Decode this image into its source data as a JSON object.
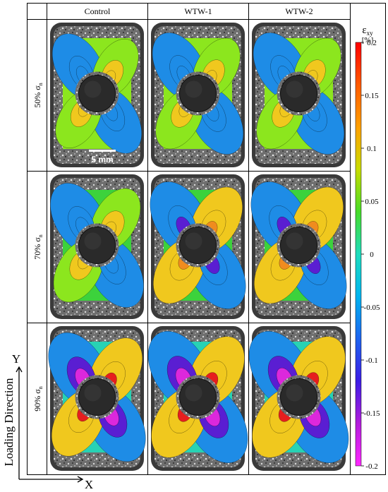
{
  "columns": [
    "Control",
    "WTW-1",
    "WTW-2"
  ],
  "rows": [
    {
      "pct": "50%",
      "sym": "σ",
      "sub": "n"
    },
    {
      "pct": "70%",
      "sym": "σ",
      "sub": "n"
    },
    {
      "pct": "90%",
      "sym": "σ",
      "sub": "n"
    }
  ],
  "colorbar": {
    "symbol": "ε",
    "subscript": "xy",
    "unit": "[%]",
    "ticks": [
      "0.2",
      "0.15",
      "0.1",
      "0.05",
      "0",
      "-0.05",
      "-0.1",
      "-0.15",
      "-0.2"
    ],
    "colors": [
      "#e61e1e",
      "#f08c1e",
      "#f0c81e",
      "#8ce61e",
      "#3cd23c",
      "#28d2b4",
      "#1e8ce6",
      "#3c50e6",
      "#5a1ed2",
      "#dc28dc"
    ]
  },
  "scale_bar": "5 mm",
  "axes": {
    "y": "Y",
    "x": "X",
    "direction": "Loading Direction"
  },
  "fields": [
    {
      "level": 0.35
    },
    {
      "level": 0.45
    },
    {
      "level": 0.45
    },
    {
      "level": 0.6
    },
    {
      "level": 0.75
    },
    {
      "level": 0.75
    },
    {
      "level": 0.85
    },
    {
      "level": 1.0
    },
    {
      "level": 1.0
    }
  ]
}
